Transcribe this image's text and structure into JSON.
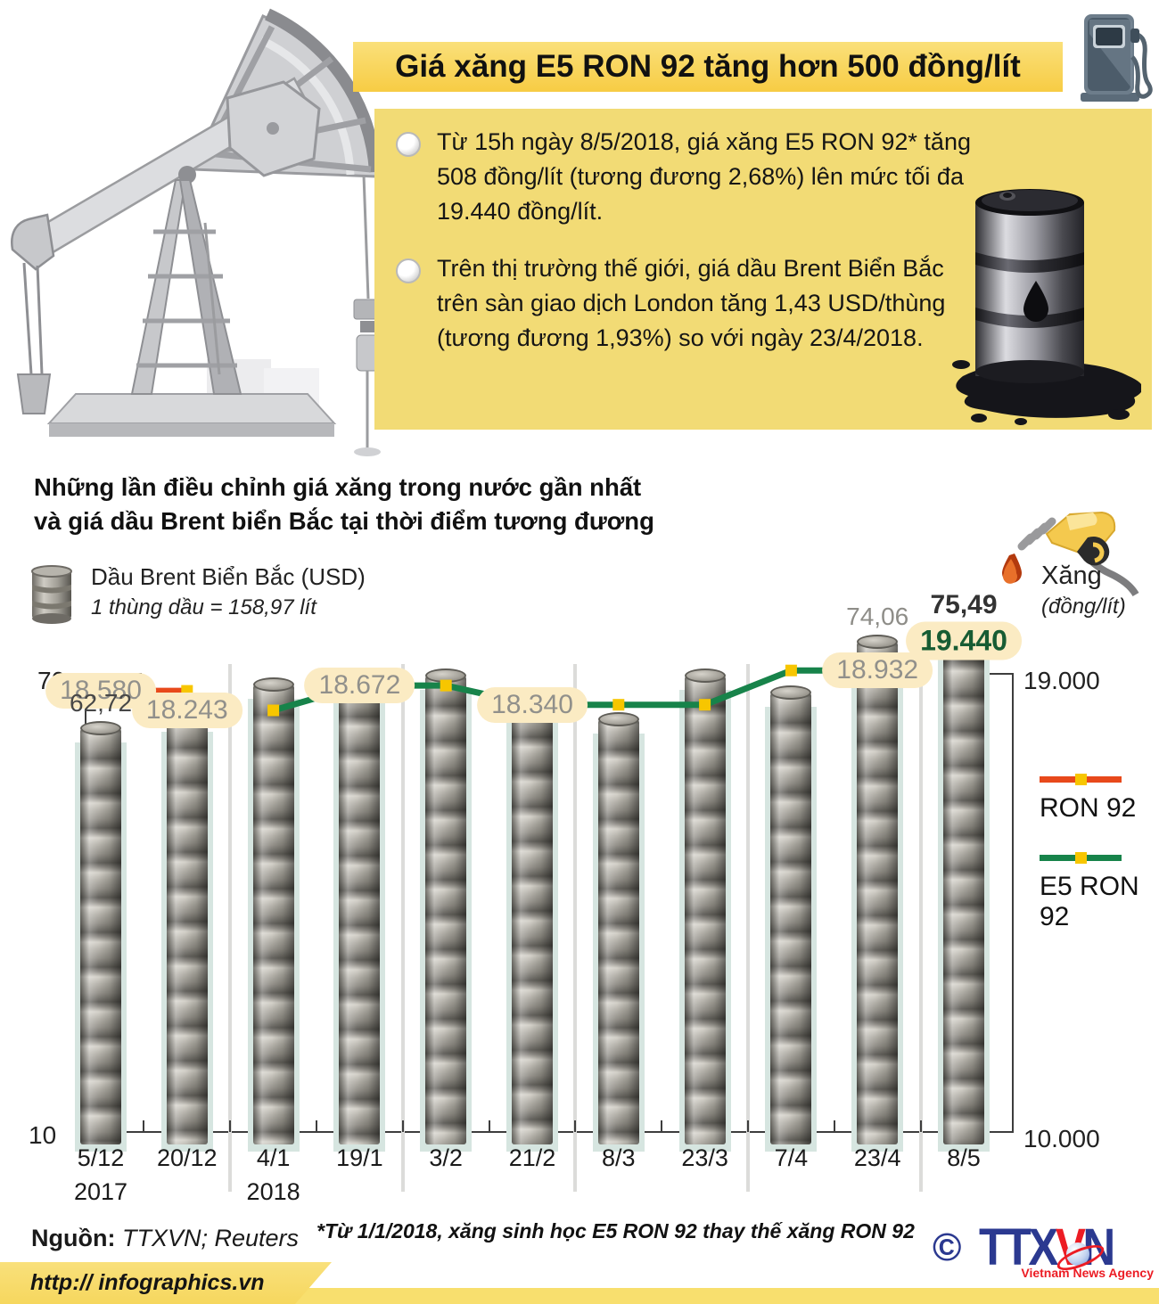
{
  "title_banner": "Giá xăng E5 RON 92 tăng hơn 500 đồng/lít",
  "info_box": {
    "bullets": [
      "Từ 15h ngày 8/5/2018, giá xăng E5 RON 92* tăng 508 đồng/lít (tương đương 2,68%) lên mức tối đa 19.440 đồng/lít.",
      "Trên thị trường thế giới, giá dầu Brent Biển Bắc trên sàn giao dịch London tăng 1,43 USD/thùng (tương đương 1,93%) so với ngày 23/4/2018."
    ]
  },
  "section_title": {
    "line1": "Những lần điều chỉnh giá xăng trong nước gần nhất",
    "line2": "và giá dầu Brent biển Bắc tại thời điểm tương đương"
  },
  "legend_left": {
    "title": "Dầu Brent Biển Bắc (USD)",
    "subtitle": "1 thùng dầu = 158,97 lít"
  },
  "unit_right": {
    "title": "Xăng",
    "subtitle": "(đồng/lít)"
  },
  "series_legend": [
    {
      "label": "RON 92",
      "color": "#e8491b"
    },
    {
      "label": "E5 RON 92",
      "color": "#17834a"
    }
  ],
  "axis": {
    "left_top": "70",
    "left_bottom": "10",
    "right_top": "19.000",
    "right_bottom": "10.000"
  },
  "chart_data": {
    "type": "bar+line",
    "title": "Những lần điều chỉnh giá xăng trong nước gần nhất và giá dầu Brent biển Bắc tại thời điểm tương đương",
    "categories": [
      "5/12",
      "20/12",
      "4/1",
      "19/1",
      "3/2",
      "21/2",
      "8/3",
      "23/3",
      "7/4",
      "23/4",
      "8/5"
    ],
    "year_markers": [
      {
        "index": 0,
        "label": "2017"
      },
      {
        "index": 2,
        "label": "2018"
      }
    ],
    "bars": {
      "name": "Dầu Brent Biển Bắc (USD)",
      "unit": "USD/thùng",
      "values": [
        62.72,
        64.2,
        68.5,
        68.3,
        69.7,
        65.6,
        63.9,
        69.7,
        67.4,
        74.06,
        75.49
      ],
      "labels": [
        {
          "index": 0,
          "text": "62,72",
          "style": "dark"
        },
        {
          "index": 9,
          "text": "74,06",
          "style": "gray"
        },
        {
          "index": 10,
          "text": "75,49",
          "style": "bold"
        }
      ]
    },
    "lines": [
      {
        "name": "RON 92",
        "color": "#e8491b",
        "points": [
          {
            "cat": "5/12",
            "value": 18580
          },
          {
            "cat": "20/12",
            "value": 18580
          }
        ]
      },
      {
        "name": "E5 RON 92",
        "color": "#17834a",
        "points": [
          {
            "cat": "4/1",
            "value": 18243
          },
          {
            "cat": "19/1",
            "value": 18672
          },
          {
            "cat": "3/2",
            "value": 18672
          },
          {
            "cat": "21/2",
            "value": 18340
          },
          {
            "cat": "8/3",
            "value": 18340
          },
          {
            "cat": "23/3",
            "value": 18340
          },
          {
            "cat": "7/4",
            "value": 18932
          },
          {
            "cat": "23/4",
            "value": 18932
          },
          {
            "cat": "8/5",
            "value": 19440
          }
        ]
      }
    ],
    "point_labels": [
      {
        "text": "18.580",
        "barIndex": 0,
        "value": 18580,
        "style": "gray"
      },
      {
        "text": "18.243",
        "barIndex": 1,
        "value": 18243,
        "style": "gray"
      },
      {
        "text": "18.672",
        "barIndex": 3,
        "value": 18672,
        "style": "gray"
      },
      {
        "text": "18.340",
        "barIndex": 5,
        "value": 18340,
        "style": "gray"
      },
      {
        "text": "18.932",
        "barIndex": 9,
        "value": 18932,
        "style": "gray"
      },
      {
        "text": "19.440",
        "barIndex": 10,
        "value": 19440,
        "style": "green"
      }
    ],
    "ylim_left": [
      10,
      70
    ],
    "ylim_right": [
      10000,
      19000
    ],
    "legend_position": "right",
    "grid": false
  },
  "footer": {
    "source_label": "Nguồn:",
    "source_value": " TTXVN; Reuters",
    "footnote": "*Từ 1/1/2018, xăng sinh học E5 RON 92 thay thế xăng RON 92",
    "url": "http:// infographics.vn",
    "copyright": "©",
    "logo_t1": "TTX",
    "logo_v": "V",
    "logo_n": "N",
    "logo_sub": "Vietnam News Agency"
  },
  "colors": {
    "banner_yellow": "#f7cc44",
    "box_yellow": "#f2db75",
    "pill_beige": "#fbebc3",
    "strip_teal": "#d6e5e0",
    "ron92_orange": "#e8491b",
    "e5_green": "#17834a",
    "marker_yellow": "#f7c600",
    "value_green": "#175c33",
    "logo_blue": "#2b3990",
    "logo_red": "#ec1c24"
  }
}
